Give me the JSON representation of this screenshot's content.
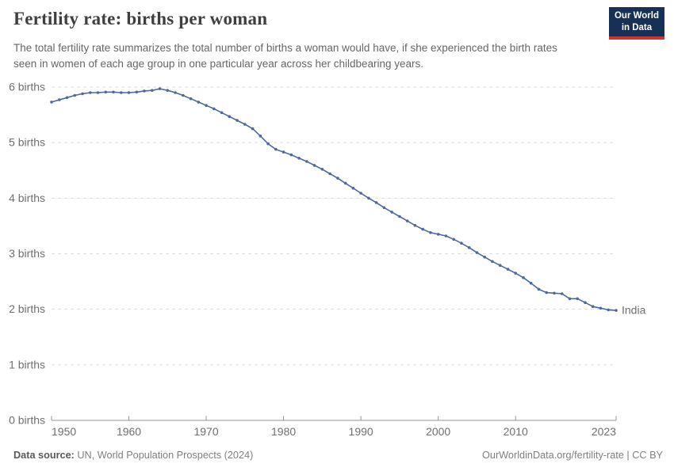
{
  "header": {
    "title": "Fertility rate: births per woman",
    "subtitle": "The total fertility rate summarizes the total number of births a woman would have, if she experienced the birth rates seen in women of each age group in one particular year across her childbearing years.",
    "logo": {
      "line1": "Our World",
      "line2": "in Data",
      "bg_color": "#163056",
      "accent_color": "#d0342c"
    }
  },
  "chart_data": {
    "type": "line",
    "title": "Fertility rate: births per woman",
    "xlabel": "",
    "ylabel": "",
    "xlim": [
      1950,
      2023
    ],
    "ylim": [
      0,
      6
    ],
    "grid": "horizontal-dashed",
    "legend_position": "end-of-line-label",
    "end_label": "India",
    "y_ticks": [
      {
        "value": 0,
        "label": "0 births"
      },
      {
        "value": 1,
        "label": "1 births"
      },
      {
        "value": 2,
        "label": "2 births"
      },
      {
        "value": 3,
        "label": "3 births"
      },
      {
        "value": 4,
        "label": "4 births"
      },
      {
        "value": 5,
        "label": "5 births"
      },
      {
        "value": 6,
        "label": "6 births"
      }
    ],
    "x_ticks": [
      {
        "value": 1950,
        "label": "1950"
      },
      {
        "value": 1960,
        "label": "1960"
      },
      {
        "value": 1970,
        "label": "1970"
      },
      {
        "value": 1980,
        "label": "1980"
      },
      {
        "value": 1990,
        "label": "1990"
      },
      {
        "value": 2000,
        "label": "2000"
      },
      {
        "value": 2010,
        "label": "2010"
      },
      {
        "value": 2023,
        "label": "2023"
      }
    ],
    "series": [
      {
        "name": "India",
        "color": "#4c6a9c",
        "x": [
          1950,
          1951,
          1952,
          1953,
          1954,
          1955,
          1956,
          1957,
          1958,
          1959,
          1960,
          1961,
          1962,
          1963,
          1964,
          1965,
          1966,
          1967,
          1968,
          1969,
          1970,
          1971,
          1972,
          1973,
          1974,
          1975,
          1976,
          1977,
          1978,
          1979,
          1980,
          1981,
          1982,
          1983,
          1984,
          1985,
          1986,
          1987,
          1988,
          1989,
          1990,
          1991,
          1992,
          1993,
          1994,
          1995,
          1996,
          1997,
          1998,
          1999,
          2000,
          2001,
          2002,
          2003,
          2004,
          2005,
          2006,
          2007,
          2008,
          2009,
          2010,
          2011,
          2012,
          2013,
          2014,
          2015,
          2016,
          2017,
          2018,
          2019,
          2020,
          2021,
          2022,
          2023
        ],
        "values": [
          5.73,
          5.77,
          5.81,
          5.85,
          5.88,
          5.9,
          5.9,
          5.91,
          5.91,
          5.9,
          5.9,
          5.91,
          5.93,
          5.94,
          5.97,
          5.94,
          5.9,
          5.85,
          5.79,
          5.73,
          5.67,
          5.61,
          5.54,
          5.47,
          5.4,
          5.33,
          5.25,
          5.12,
          4.98,
          4.88,
          4.83,
          4.78,
          4.72,
          4.66,
          4.59,
          4.52,
          4.44,
          4.36,
          4.27,
          4.18,
          4.09,
          4.0,
          3.92,
          3.83,
          3.75,
          3.67,
          3.59,
          3.51,
          3.44,
          3.38,
          3.35,
          3.32,
          3.26,
          3.19,
          3.11,
          3.02,
          2.94,
          2.86,
          2.79,
          2.72,
          2.65,
          2.57,
          2.47,
          2.36,
          2.3,
          2.29,
          2.28,
          2.19,
          2.19,
          2.12,
          2.05,
          2.02,
          1.99,
          1.98
        ]
      }
    ]
  },
  "footer": {
    "datasource_label": "Data source:",
    "datasource_value": "UN, World Population Prospects (2024)",
    "attribution": "OurWorldinData.org/fertility-rate | CC BY"
  }
}
